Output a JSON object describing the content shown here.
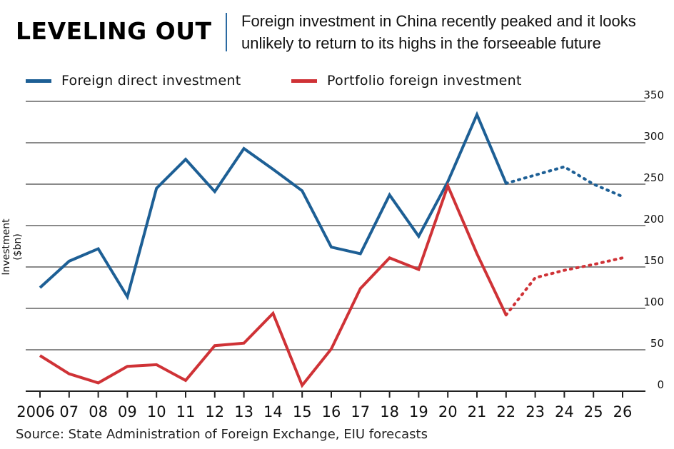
{
  "title": "LEVELING OUT",
  "subtitle": "Foreign investment in China recently peaked and it looks unlikely to return to its highs in the forseeable future",
  "source": "Source: State Administration of Foreign Exchange, EIU forecasts",
  "colors": {
    "fdi": "#1d5f95",
    "portfolio": "#cf3236",
    "grid": "#8a8a8a",
    "axis": "#222222"
  },
  "chart_data": {
    "type": "line",
    "title": "LEVELING OUT",
    "ylabel": "Investment ($bn)",
    "xlabel": "",
    "ylim": [
      0,
      350
    ],
    "y_ticks": [
      0,
      50,
      100,
      150,
      200,
      250,
      300,
      350
    ],
    "y_tick_labels": [
      "0",
      "50",
      "100",
      "150",
      "200",
      "250",
      "300",
      "350"
    ],
    "y_axis_position": "right",
    "grid": true,
    "legend": "top-left",
    "categories": [
      "2006",
      "07",
      "08",
      "09",
      "10",
      "11",
      "12",
      "13",
      "14",
      "15",
      "16",
      "17",
      "18",
      "19",
      "20",
      "21",
      "22",
      "23",
      "24",
      "25",
      "26"
    ],
    "series": [
      {
        "name": "Foreign direct investment",
        "color": "#1d5f95",
        "values": [
          125,
          157,
          172,
          114,
          245,
          280,
          241,
          293,
          268,
          242,
          174,
          166,
          237,
          187,
          253,
          334,
          251,
          261,
          271,
          250,
          235
        ],
        "actual_until_index": 16
      },
      {
        "name": "Portfolio foreign investment",
        "color": "#cf3236",
        "values": [
          43,
          21,
          10,
          30,
          32,
          13,
          55,
          58,
          94,
          7,
          51,
          124,
          161,
          147,
          248,
          166,
          92,
          137,
          146,
          153,
          161
        ],
        "actual_until_index": 16
      }
    ],
    "x_tick_labels": [
      "2006",
      "07",
      "08",
      "09",
      "10",
      "11",
      "12",
      "13",
      "14",
      "15",
      "16",
      "17",
      "18",
      "19",
      "20",
      "21",
      "22",
      "23",
      "24",
      "25",
      "26"
    ]
  }
}
